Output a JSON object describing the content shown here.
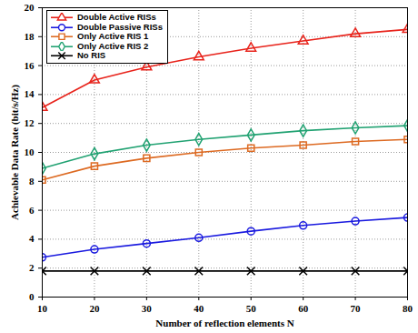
{
  "chart_data": {
    "type": "line",
    "x_label": "Number of reflection elements N",
    "y_label": "Achievable Data Rate (bit/s/Hz)",
    "x": [
      10,
      20,
      30,
      40,
      50,
      60,
      70,
      80
    ],
    "xlim": [
      10,
      80
    ],
    "xticks": [
      10,
      20,
      30,
      40,
      50,
      60,
      70,
      80
    ],
    "ylim": [
      0,
      20
    ],
    "yticks": [
      0,
      2,
      4,
      6,
      8,
      10,
      12,
      14,
      16,
      18,
      20
    ],
    "grid": true,
    "legend": "upper left",
    "series": [
      {
        "name": "Double Active RISs",
        "color": "#e8231b",
        "marker": "triangle",
        "line_style": "solid",
        "values": [
          13.1,
          15.0,
          15.9,
          16.6,
          17.2,
          17.7,
          18.2,
          18.5
        ]
      },
      {
        "name": "Double Passive RISs",
        "color": "#1a1adf",
        "marker": "circle",
        "line_style": "solid",
        "values": [
          2.75,
          3.3,
          3.7,
          4.1,
          4.55,
          4.95,
          5.25,
          5.5
        ]
      },
      {
        "name": "Only Active RIS 1",
        "color": "#dd6a22",
        "marker": "square",
        "line_style": "solid",
        "values": [
          8.1,
          9.05,
          9.6,
          10.0,
          10.3,
          10.5,
          10.75,
          10.9
        ]
      },
      {
        "name": "Only Active RIS 2",
        "color": "#21a272",
        "marker": "diamond",
        "line_style": "solid",
        "values": [
          8.9,
          9.9,
          10.5,
          10.9,
          11.2,
          11.5,
          11.7,
          11.85
        ]
      },
      {
        "name": "No RIS",
        "color": "#000000",
        "marker": "times",
        "line_style": "solid",
        "values": [
          1.8,
          1.8,
          1.8,
          1.8,
          1.8,
          1.8,
          1.8,
          1.8
        ]
      }
    ]
  }
}
